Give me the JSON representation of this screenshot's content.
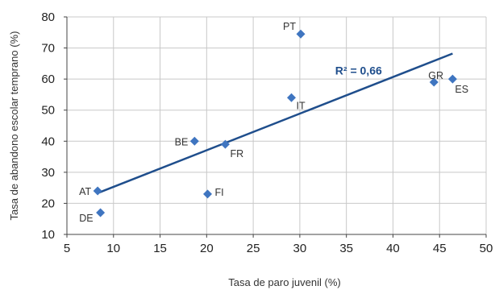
{
  "chart_data": {
    "type": "scatter",
    "xlabel": "Tasa de paro juvenil (%)",
    "ylabel": "Tasa de abandono escolar temprano (%)",
    "xlim": [
      5,
      50
    ],
    "ylim": [
      10,
      80
    ],
    "xticks": [
      "5",
      "10",
      "15",
      "20",
      "25",
      "30",
      "35",
      "40",
      "45",
      "50"
    ],
    "yticks": [
      "10",
      "20",
      "30",
      "40",
      "50",
      "60",
      "70",
      "80"
    ],
    "grid": true,
    "marker_color": "#3f75c0",
    "trendline_color": "#1f4e8c",
    "points": [
      {
        "label": "AT",
        "x": 8.3,
        "y": 24
      },
      {
        "label": "DE",
        "x": 8.6,
        "y": 17
      },
      {
        "label": "BE",
        "x": 18.7,
        "y": 40
      },
      {
        "label": "FR",
        "x": 22.0,
        "y": 39
      },
      {
        "label": "FI",
        "x": 20.1,
        "y": 23
      },
      {
        "label": "IT",
        "x": 29.1,
        "y": 54
      },
      {
        "label": "PT",
        "x": 30.1,
        "y": 74.5
      },
      {
        "label": "GR",
        "x": 44.4,
        "y": 59
      },
      {
        "label": "ES",
        "x": 46.4,
        "y": 60
      }
    ],
    "trendline": {
      "x": [
        8.3,
        46.4
      ],
      "y": [
        23.3,
        68.2
      ]
    },
    "annotation": "R² = 0,66"
  }
}
